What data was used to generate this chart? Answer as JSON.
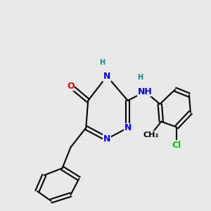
{
  "background_color": "#e8e8e8",
  "bond_color": "#000000",
  "bond_width": 1.5,
  "atom_colors": {
    "N": "#0000ff",
    "O": "#ff0000",
    "Cl": "#00cc00",
    "H": "#008888",
    "C": "#000000"
  }
}
